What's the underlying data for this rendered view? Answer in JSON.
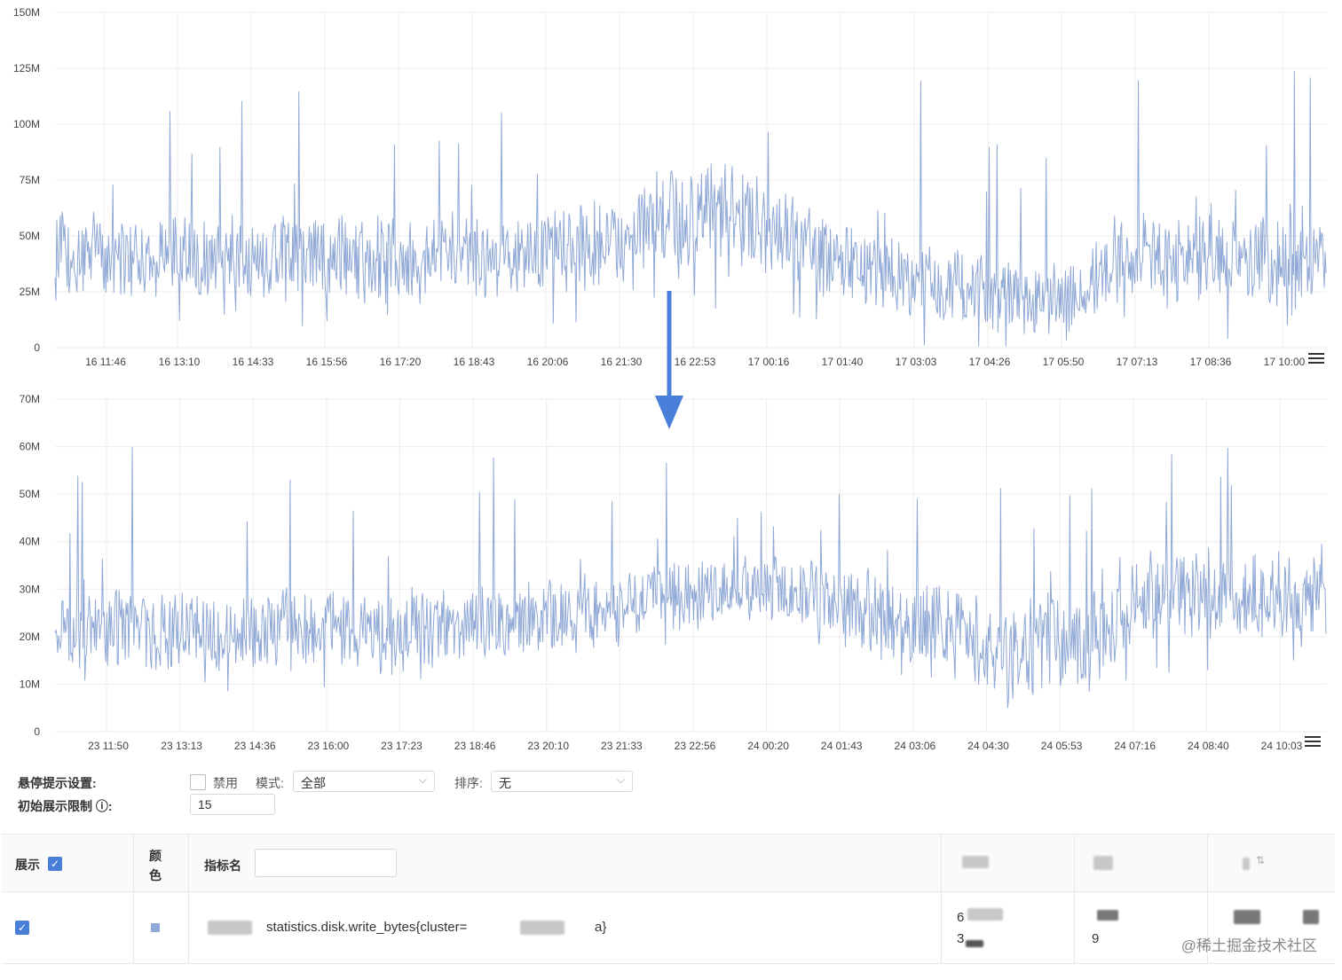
{
  "colors": {
    "series": "#8fa8d6",
    "grid": "#ececec",
    "axis_text": "#444",
    "arrow": "#4a7fd9",
    "check": "#4a7fd9"
  },
  "chart_data": [
    {
      "type": "line",
      "y_ticks": [
        "0",
        "25M",
        "50M",
        "75M",
        "100M",
        "125M",
        "150M"
      ],
      "x_ticks": [
        "16 11:46",
        "16 13:10",
        "16 14:33",
        "16 15:56",
        "16 17:20",
        "16 18:43",
        "16 20:06",
        "16 21:30",
        "16 22:53",
        "17 00:16",
        "17 01:40",
        "17 03:03",
        "17 04:26",
        "17 05:50",
        "17 07:13",
        "17 08:36",
        "17 10:00"
      ],
      "ylim": [
        0,
        150000000
      ],
      "grid": true,
      "series": [
        {
          "points": 1450,
          "envelope": [
            {
              "x": 0.0,
              "mean": 41000000,
              "spread": 16000000
            },
            {
              "x": 0.2,
              "mean": 40000000,
              "spread": 16000000
            },
            {
              "x": 0.35,
              "mean": 40000000,
              "spread": 15000000
            },
            {
              "x": 0.45,
              "mean": 48000000,
              "spread": 18000000
            },
            {
              "x": 0.5,
              "mean": 60000000,
              "spread": 22000000
            },
            {
              "x": 0.55,
              "mean": 55000000,
              "spread": 20000000
            },
            {
              "x": 0.62,
              "mean": 38000000,
              "spread": 15000000
            },
            {
              "x": 0.72,
              "mean": 25000000,
              "spread": 15000000
            },
            {
              "x": 0.8,
              "mean": 20000000,
              "spread": 14000000
            },
            {
              "x": 0.84,
              "mean": 40000000,
              "spread": 18000000
            },
            {
              "x": 1.0,
              "mean": 40000000,
              "spread": 18000000
            }
          ],
          "peak_max": 125000000
        }
      ]
    },
    {
      "type": "line",
      "y_ticks": [
        "0",
        "10M",
        "20M",
        "30M",
        "40M",
        "50M",
        "60M",
        "70M"
      ],
      "x_ticks": [
        "23 11:50",
        "23 13:13",
        "23 14:36",
        "23 16:00",
        "23 17:23",
        "23 18:46",
        "23 20:10",
        "23 21:33",
        "23 22:56",
        "24 00:20",
        "24 01:43",
        "24 03:06",
        "24 04:30",
        "24 05:53",
        "24 07:16",
        "24 08:40",
        "24 10:03"
      ],
      "ylim": [
        0,
        70000000
      ],
      "grid": true,
      "series": [
        {
          "points": 1450,
          "envelope": [
            {
              "x": 0.0,
              "mean": 22000000,
              "spread": 7000000
            },
            {
              "x": 0.3,
              "mean": 21000000,
              "spread": 7000000
            },
            {
              "x": 0.4,
              "mean": 24000000,
              "spread": 7000000
            },
            {
              "x": 0.5,
              "mean": 29000000,
              "spread": 6000000
            },
            {
              "x": 0.58,
              "mean": 30000000,
              "spread": 6000000
            },
            {
              "x": 0.65,
              "mean": 24000000,
              "spread": 8000000
            },
            {
              "x": 0.75,
              "mean": 18000000,
              "spread": 9000000
            },
            {
              "x": 0.82,
              "mean": 20000000,
              "spread": 9000000
            },
            {
              "x": 0.86,
              "mean": 28000000,
              "spread": 8000000
            },
            {
              "x": 1.0,
              "mean": 29000000,
              "spread": 8000000
            }
          ],
          "peak_max": 60000000
        }
      ]
    }
  ],
  "controls": {
    "hover_label": "悬停提示设置:",
    "disable_label": "禁用",
    "mode_label": "模式:",
    "mode_value": "全部",
    "sort_label": "排序:",
    "sort_value": "无",
    "limit_label": "初始展示限制 ⓘ:",
    "limit_value": "15"
  },
  "table": {
    "col_show": "展示",
    "col_color_line1": "颜",
    "col_color_line2": "色",
    "col_metric": "指标名",
    "metric_filter_value": "",
    "row_metric_left": "statistics.disk.write_bytes{cluster=",
    "row_metric_right": "a}",
    "row_values": [
      "6",
      "3",
      "9"
    ]
  },
  "credit": "@稀土掘金技术社区"
}
